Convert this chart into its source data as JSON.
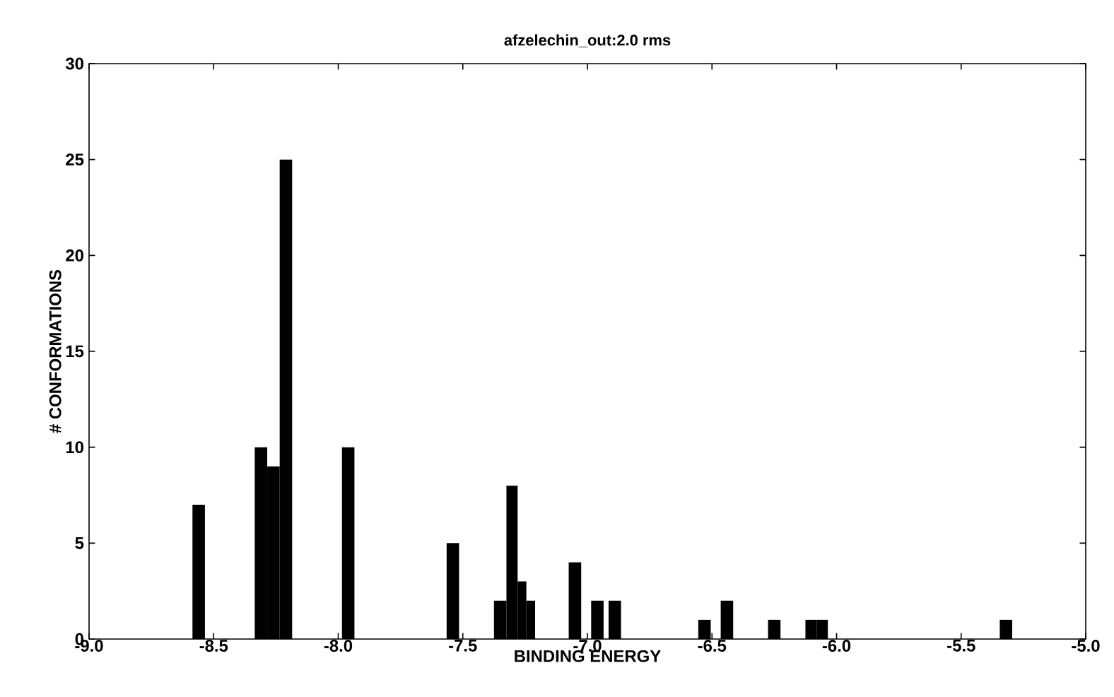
{
  "chart_data": {
    "type": "histogram",
    "title": "afzelechin_out:2.0 rms",
    "xlabel": "BINDING ENERGY",
    "ylabel": "# CONFORMATIONS",
    "bins": [
      -8.585,
      -8.535,
      -8.335,
      -8.285,
      -8.235,
      -8.185,
      -7.985,
      -7.935,
      -7.565,
      -7.515,
      -7.375,
      -7.325,
      -7.28,
      -7.245,
      -7.21,
      -7.075,
      -7.025,
      -6.985,
      -6.935,
      -6.915,
      -6.865,
      -6.555,
      -6.505,
      -6.465,
      -6.415,
      -6.275,
      -6.225,
      -6.125,
      -6.08,
      -6.035,
      -5.345,
      -5.295
    ],
    "values": [
      7,
      0,
      10,
      9,
      25,
      0,
      10,
      0,
      5,
      0,
      2,
      8,
      3,
      2,
      0,
      4,
      0,
      2,
      0,
      2,
      0,
      1,
      0,
      2,
      0,
      1,
      0,
      1,
      1,
      0,
      1
    ],
    "color": "#000000",
    "xlim": [
      -9.0,
      -5.0
    ],
    "xticks": [
      {
        "value": -9.0,
        "label": "-9.0"
      },
      {
        "value": -8.5,
        "label": "-8.5"
      },
      {
        "value": -8.0,
        "label": "-8.0"
      },
      {
        "value": -7.5,
        "label": "-7.5"
      },
      {
        "value": -7.0,
        "label": "-7.0"
      },
      {
        "value": -6.5,
        "label": "-6.5"
      },
      {
        "value": -6.0,
        "label": "-6.0"
      },
      {
        "value": -5.5,
        "label": "-5.5"
      },
      {
        "value": -5.0,
        "label": "-5.0"
      }
    ],
    "ylim": [
      0,
      30
    ],
    "yticks": [
      0,
      5,
      10,
      15,
      20,
      25,
      30
    ],
    "grid": false
  }
}
